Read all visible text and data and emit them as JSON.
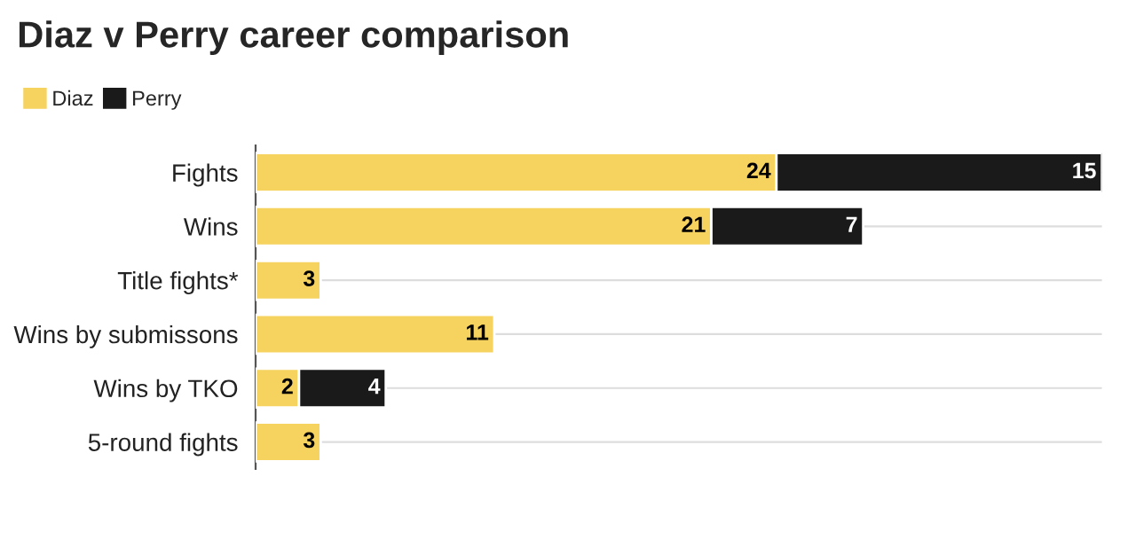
{
  "chart_data": {
    "type": "bar",
    "orientation": "horizontal",
    "stacked": true,
    "title": "Diaz v Perry career comparison",
    "categories": [
      "Fights",
      "Wins",
      "Title fights*",
      "Wins by submissons",
      "Wins by TKO",
      "5-round fights"
    ],
    "series": [
      {
        "name": "Diaz",
        "color": "#f6d25f",
        "values": [
          24,
          21,
          3,
          11,
          2,
          3
        ]
      },
      {
        "name": "Perry",
        "color": "#1a1a1a",
        "values": [
          15,
          7,
          null,
          null,
          4,
          null
        ]
      }
    ],
    "xlim": [
      0,
      39
    ],
    "data_labels": true,
    "grid": "y",
    "legend": "top left",
    "tick_labels": "y"
  }
}
